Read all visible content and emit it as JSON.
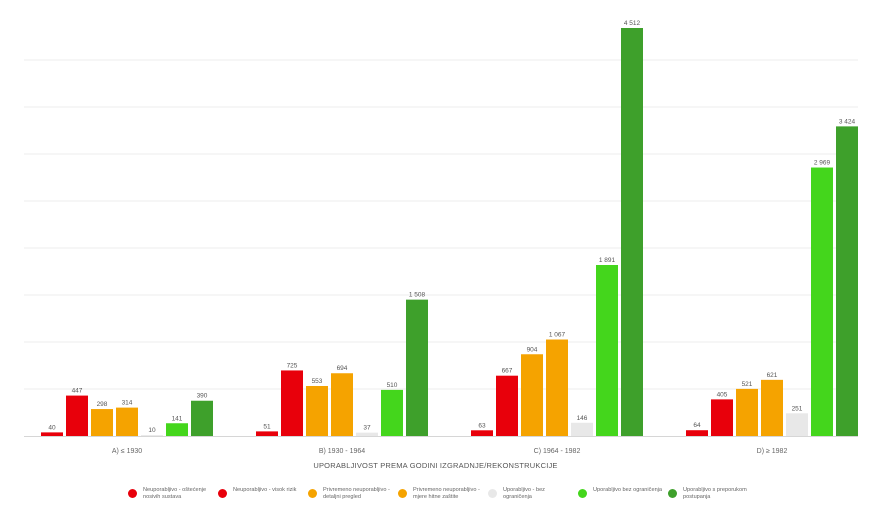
{
  "colors": {
    "red": "#e8000b",
    "orange": "#f5a300",
    "lightgray": "#e8e8e8",
    "lightgreen": "#44d61c",
    "darkgreen": "#3ea02b"
  },
  "chart_data": {
    "type": "bar",
    "xlabel": "UPORABLJIVOST PREMA GODINI IZGRADNJE/REKONSTRUKCIJE",
    "ylabel": "",
    "title": "",
    "ylim": [
      0,
      4700
    ],
    "grid": true,
    "legend_position": "bottom",
    "categories": [
      "A) ≤ 1930",
      "B) 1930 - 1964",
      "C) 1964 - 1982",
      "D) ≥ 1982"
    ],
    "series": [
      {
        "name": "Neuporabljivo - oštećenje nosivih sustava",
        "color": "#e8000b",
        "values": [
          40,
          51,
          63,
          64
        ],
        "labels": [
          "40",
          "51",
          "63",
          "64"
        ]
      },
      {
        "name": "Neuporabljivo - visok rizik",
        "color": "#e8000b",
        "values": [
          447,
          725,
          667,
          405
        ],
        "labels": [
          "447",
          "725",
          "667",
          "405"
        ]
      },
      {
        "name": "Privremeno neuporabljivo - detaljni pregled",
        "color": "#f5a300",
        "values": [
          298,
          553,
          904,
          521
        ],
        "labels": [
          "298",
          "553",
          "904",
          "521"
        ]
      },
      {
        "name": "Privremeno neuporabljivo - mjere hitne zaštite",
        "color": "#f5a300",
        "values": [
          314,
          694,
          1067,
          621
        ],
        "labels": [
          "314",
          "694",
          "1 067",
          "621"
        ]
      },
      {
        "name": "Uporabljivo - bez ograničenja",
        "color": "#e8e8e8",
        "values": [
          10,
          37,
          146,
          251
        ],
        "labels": [
          "10",
          "37",
          "146",
          "251"
        ]
      },
      {
        "name": "Uporabljivo bez ograničenja",
        "color": "#44d61c",
        "values": [
          141,
          510,
          1891,
          2969
        ],
        "labels": [
          "141",
          "510",
          "1 891",
          "2 969"
        ]
      },
      {
        "name": "Uporabljivo s preporukom postupanja",
        "color": "#3ea02b",
        "values": [
          390,
          1508,
          4512,
          3424
        ],
        "labels": [
          "390",
          "1 508",
          "4 512",
          "3 424"
        ]
      }
    ]
  },
  "legend": [
    {
      "label": "Neuporabljivo - oštećenje nosivih sustava",
      "color": "#e8000b"
    },
    {
      "label": "Neuporabljivo - visok rizik",
      "color": "#e8000b"
    },
    {
      "label": "Privremeno neuporabljivo - detaljni pregled",
      "color": "#f5a300"
    },
    {
      "label": "Privremeno neuporabljivo - mjere hitne zaštite",
      "color": "#f5a300"
    },
    {
      "label": "Uporabljivo - bez ograničenja",
      "color": "#e8e8e8"
    },
    {
      "label": "Uporabljivo bez ograničenja",
      "color": "#44d61c"
    },
    {
      "label": "Uporabljivo s preporukom postupanja",
      "color": "#3ea02b"
    }
  ]
}
